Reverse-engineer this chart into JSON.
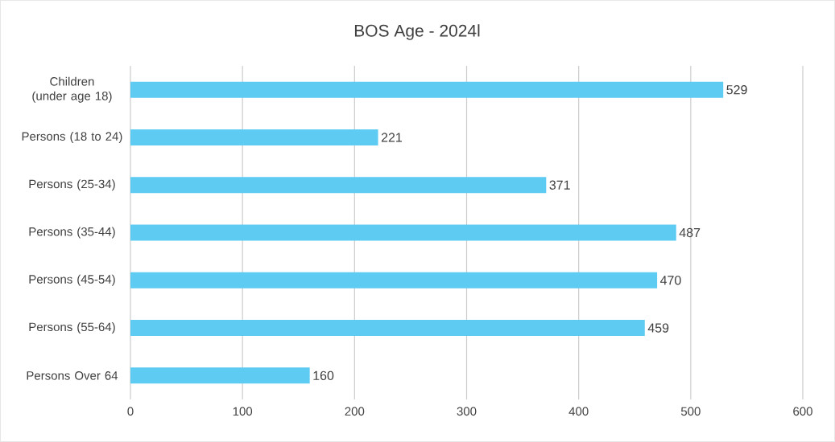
{
  "chart_data": {
    "type": "bar",
    "orientation": "horizontal",
    "title": "BOS Age - 2024l",
    "categories": [
      "Children (under age 18)",
      "Persons (18 to 24)",
      "Persons (25-34)",
      "Persons (35-44)",
      "Persons (45-54)",
      "Persons (55-64)",
      "Persons Over 64"
    ],
    "values": [
      529,
      221,
      371,
      487,
      470,
      459,
      160
    ],
    "color": "#5ecbf3",
    "xlim": [
      0,
      600
    ],
    "xticks": [
      0,
      100,
      200,
      300,
      400,
      500,
      600
    ],
    "grid": "x",
    "data_labels": true
  }
}
